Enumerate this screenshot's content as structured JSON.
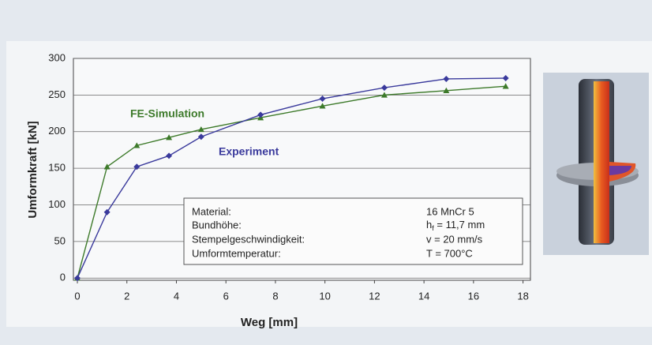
{
  "chart_data": {
    "type": "line",
    "x_label": "Weg   [mm]",
    "y_label": "Umformkraft  [kN]",
    "xlim": [
      -0.16,
      18.3
    ],
    "ylim": [
      -3,
      300
    ],
    "xticks": [
      0,
      2,
      4,
      6,
      8,
      10,
      12,
      14,
      16,
      18
    ],
    "yticks": [
      0,
      50,
      100,
      150,
      200,
      250,
      300
    ],
    "grid": true,
    "series": [
      {
        "name": "FE-Simulation",
        "color": "#3d7a2a",
        "marker": "triangle",
        "x": [
          0,
          1.2,
          2.4,
          3.7,
          5.0,
          7.4,
          9.9,
          12.4,
          14.9,
          17.3
        ],
        "values": [
          0,
          152,
          181,
          192,
          203,
          219,
          235,
          250,
          256,
          262
        ]
      },
      {
        "name": "Experiment",
        "color": "#3a3a9c",
        "marker": "diamond",
        "x": [
          0,
          1.2,
          2.4,
          3.7,
          5.0,
          7.4,
          9.9,
          12.4,
          14.9,
          17.3
        ],
        "values": [
          0,
          90,
          152,
          167,
          193,
          223,
          245,
          260,
          272,
          273
        ]
      }
    ],
    "info_box": [
      {
        "label": "Material:",
        "value": "16 MnCr 5"
      },
      {
        "label": "Bundhöhe:",
        "value_parts": [
          "h",
          "f",
          " = 11,7 mm"
        ]
      },
      {
        "label": "Stempelgeschwindigkeit:",
        "value": "v = 20 mm/s"
      },
      {
        "label": "Umformtemperatur:",
        "value": "T = 700°C"
      }
    ]
  }
}
